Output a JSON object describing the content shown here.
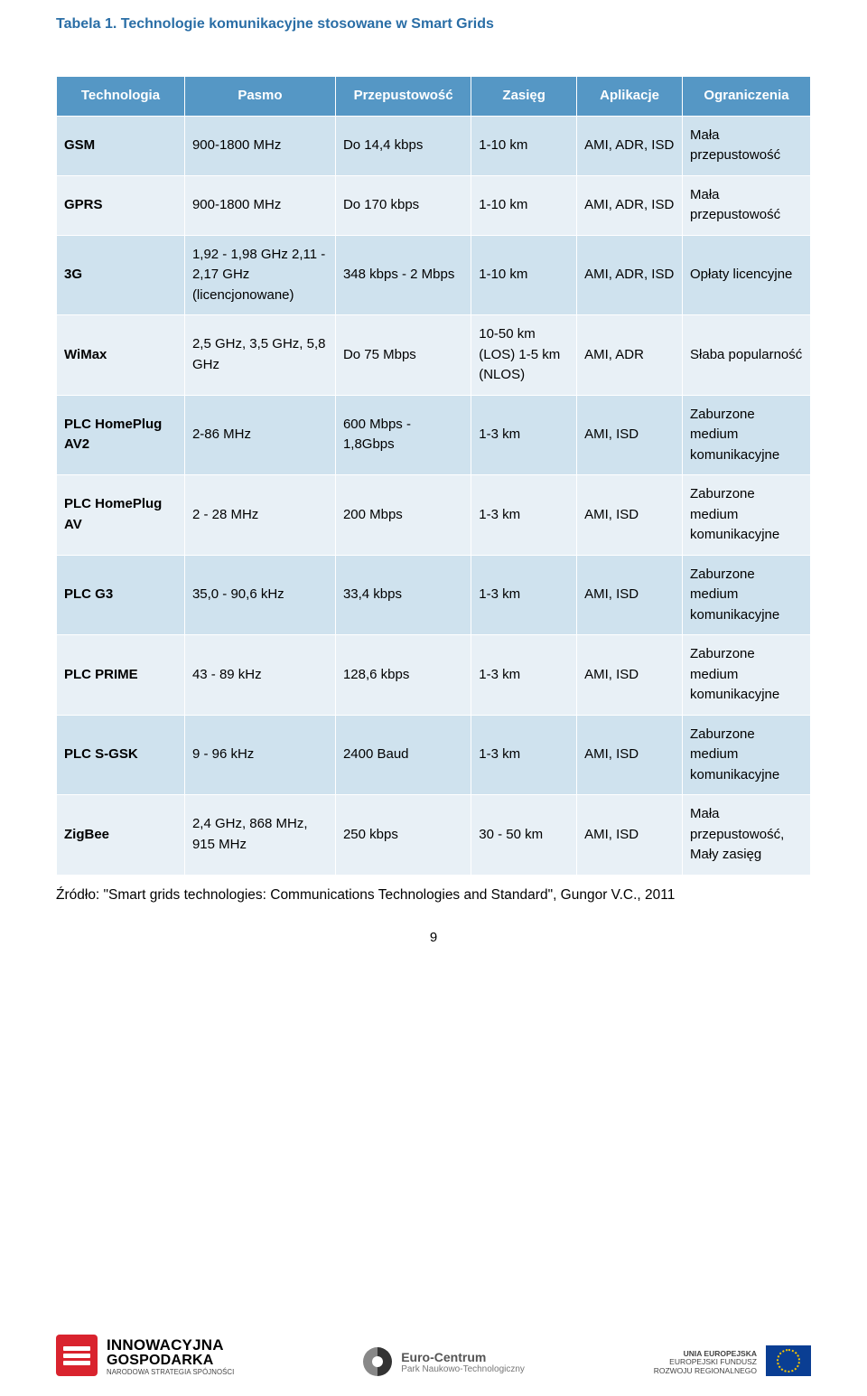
{
  "caption": "Tabela 1. Technologie komunikacyjne stosowane w Smart Grids",
  "columns": [
    "Technologia",
    "Pasmo",
    "Przepustowość",
    "Zasięg",
    "Aplikacje",
    "Ograniczenia"
  ],
  "rows": [
    {
      "tech": "GSM",
      "band": "900-1800 MHz",
      "tp": "Do 14,4 kbps",
      "range": "1-10 km",
      "apps": "AMI, ADR, ISD",
      "lim": "Mała przepustowość"
    },
    {
      "tech": "GPRS",
      "band": "900-1800 MHz",
      "tp": "Do 170 kbps",
      "range": "1-10 km",
      "apps": "AMI, ADR, ISD",
      "lim": "Mała przepustowość"
    },
    {
      "tech": "3G",
      "band": "1,92 - 1,98 GHz 2,11 - 2,17 GHz (licencjonowane)",
      "tp": "348 kbps - 2 Mbps",
      "range": "1-10 km",
      "apps": "AMI, ADR, ISD",
      "lim": "Opłaty licencyjne"
    },
    {
      "tech": "WiMax",
      "band": "2,5 GHz, 3,5 GHz, 5,8 GHz",
      "tp": "Do 75 Mbps",
      "range": "10-50 km (LOS) 1-5 km (NLOS)",
      "apps": "AMI, ADR",
      "lim": "Słaba popularność"
    },
    {
      "tech": "PLC HomePlug AV2",
      "band": "2-86 MHz",
      "tp": "600 Mbps - 1,8Gbps",
      "range": "1-3 km",
      "apps": "AMI, ISD",
      "lim": "Zaburzone medium komunikacyjne"
    },
    {
      "tech": "PLC HomePlug AV",
      "band": "2 - 28 MHz",
      "tp": "200 Mbps",
      "range": "1-3 km",
      "apps": "AMI, ISD",
      "lim": "Zaburzone medium komunikacyjne"
    },
    {
      "tech": "PLC G3",
      "band": "35,0 - 90,6 kHz",
      "tp": "33,4 kbps",
      "range": "1-3 km",
      "apps": "AMI, ISD",
      "lim": "Zaburzone medium komunikacyjne"
    },
    {
      "tech": "PLC PRIME",
      "band": "43 - 89 kHz",
      "tp": "128,6 kbps",
      "range": "1-3 km",
      "apps": "AMI, ISD",
      "lim": "Zaburzone medium komunikacyjne"
    },
    {
      "tech": "PLC S-GSK",
      "band": "9 - 96 kHz",
      "tp": "2400 Baud",
      "range": "1-3 km",
      "apps": "AMI, ISD",
      "lim": "Zaburzone medium komunikacyjne"
    },
    {
      "tech": "ZigBee",
      "band": "2,4 GHz, 868 MHz, 915 MHz",
      "tp": "250 kbps",
      "range": "30 - 50 km",
      "apps": "AMI, ISD",
      "lim": "Mała przepustowość, Mały zasięg"
    }
  ],
  "source": "Źródło: \"Smart grids technologies: Communications Technologies and Standard\", Gungor V.C., 2011",
  "page_number": "9",
  "colors": {
    "header_bg": "#5597c5",
    "row_odd_bg": "#cfe2ee",
    "row_even_bg": "#e8f0f6",
    "caption_color": "#2a6ea6",
    "ig_red": "#d9232e",
    "eu_blue": "#0a3e93",
    "eu_gold": "#f7c600"
  },
  "footer": {
    "left": {
      "line1": "INNOWACYJNA",
      "line2": "GOSPODARKA",
      "line3": "NARODOWA STRATEGIA SPÓJNOŚCI"
    },
    "center": {
      "line1": "Euro-Centrum",
      "line2": "Park Naukowo-Technologiczny"
    },
    "right": {
      "line1": "UNIA EUROPEJSKA",
      "line2": "EUROPEJSKI FUNDUSZ",
      "line3": "ROZWOJU REGIONALNEGO"
    }
  }
}
